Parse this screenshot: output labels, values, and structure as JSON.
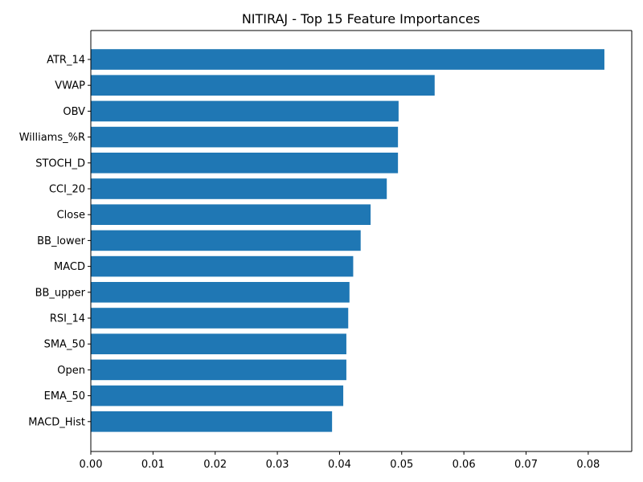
{
  "chart_data": {
    "type": "bar",
    "orientation": "horizontal",
    "title": "NITIRAJ - Top 15 Feature Importances",
    "xlabel": "",
    "ylabel": "",
    "categories": [
      "ATR_14",
      "VWAP",
      "OBV",
      "Williams_%R",
      "STOCH_D",
      "CCI_20",
      "Close",
      "BB_lower",
      "MACD",
      "BB_upper",
      "RSI_14",
      "SMA_50",
      "Open",
      "EMA_50",
      "MACD_Hist"
    ],
    "values": [
      0.0826,
      0.0553,
      0.0495,
      0.0494,
      0.0494,
      0.0476,
      0.045,
      0.0434,
      0.0422,
      0.0416,
      0.0414,
      0.0411,
      0.0411,
      0.0406,
      0.0388
    ],
    "xlim": [
      0,
      0.087
    ],
    "xticks": [
      0.0,
      0.01,
      0.02,
      0.03,
      0.04,
      0.05,
      0.06,
      0.07,
      0.08
    ],
    "xtick_labels": [
      "0.00",
      "0.01",
      "0.02",
      "0.03",
      "0.04",
      "0.05",
      "0.06",
      "0.07",
      "0.08"
    ],
    "bar_color": "#1f77b4",
    "grid": false,
    "legend": "none"
  }
}
